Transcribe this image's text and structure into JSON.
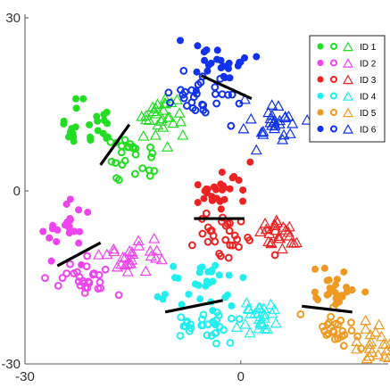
{
  "chart_data": {
    "type": "scatter",
    "title": "",
    "xlabel": "",
    "ylabel": "",
    "xlim": [
      -30,
      20.5
    ],
    "ylim": [
      -30,
      30
    ],
    "xticks": [
      {
        "value": -30,
        "label": "-30"
      },
      {
        "value": 0,
        "label": "0"
      }
    ],
    "yticks": [
      {
        "value": 30,
        "label": "30"
      },
      {
        "value": 0,
        "label": "0"
      },
      {
        "value": -30,
        "label": "-30"
      }
    ],
    "grid": false,
    "legend_position": "top-right",
    "marker_styles": [
      {
        "name": "filled-circle"
      },
      {
        "name": "open-circle"
      },
      {
        "name": "open-triangle"
      }
    ],
    "series": [
      {
        "name": "ID 1",
        "color": "#22dd22",
        "clusters": [
          {
            "marker": "filled-circle",
            "center": [
              -20.5,
              11
            ],
            "spread": [
              1.9,
              2.3
            ],
            "count": 26
          },
          {
            "marker": "open-circle",
            "center": [
              -15.5,
              5.8
            ],
            "spread": [
              1.8,
              2.1
            ],
            "count": 26
          },
          {
            "marker": "open-triangle",
            "center": [
              -11,
              12.5
            ],
            "spread": [
              1.8,
              2.3
            ],
            "count": 28
          }
        ],
        "separator": [
          [
            -19.5,
            4.5
          ],
          [
            -15.5,
            11.5
          ]
        ]
      },
      {
        "name": "ID 2",
        "color": "#ee44ee",
        "clusters": [
          {
            "marker": "filled-circle",
            "center": [
              -24.5,
              -6.3
            ],
            "spread": [
              1.6,
              2.2
            ],
            "count": 24
          },
          {
            "marker": "open-circle",
            "center": [
              -21.5,
              -15.5
            ],
            "spread": [
              2.2,
              1.7
            ],
            "count": 28
          },
          {
            "marker": "open-triangle",
            "center": [
              -14.5,
              -11.5
            ],
            "spread": [
              1.7,
              1.5
            ],
            "count": 26
          }
        ],
        "separator": [
          [
            -25.5,
            -13
          ],
          [
            -19.5,
            -9
          ]
        ]
      },
      {
        "name": "ID 3",
        "color": "#ee2222",
        "clusters": [
          {
            "marker": "filled-circle",
            "center": [
              -3,
              0.8
            ],
            "spread": [
              1.9,
              2.2
            ],
            "count": 28
          },
          {
            "marker": "open-circle",
            "center": [
              -1.5,
              -7.8
            ],
            "spread": [
              2.3,
              1.6
            ],
            "count": 30
          },
          {
            "marker": "open-triangle",
            "center": [
              6,
              -7.3
            ],
            "spread": [
              1.8,
              1.4
            ],
            "count": 24
          }
        ],
        "separator": [
          [
            -6.5,
            -4.8
          ],
          [
            0.5,
            -4.8
          ]
        ]
      },
      {
        "name": "ID 4",
        "color": "#22eeee",
        "clusters": [
          {
            "marker": "filled-circle",
            "center": [
              -6,
              -16.5
            ],
            "spread": [
              2.1,
              2.0
            ],
            "count": 30
          },
          {
            "marker": "open-circle",
            "center": [
              -5.5,
              -23
            ],
            "spread": [
              2.1,
              1.6
            ],
            "count": 30
          },
          {
            "marker": "open-triangle",
            "center": [
              2.5,
              -22.5
            ],
            "spread": [
              1.7,
              1.6
            ],
            "count": 26
          }
        ],
        "separator": [
          [
            -10.5,
            -21
          ],
          [
            -2.5,
            -19
          ]
        ]
      },
      {
        "name": "ID 5",
        "color": "#ee9922",
        "clusters": [
          {
            "marker": "filled-circle",
            "center": [
              13.5,
              -17
            ],
            "spread": [
              1.7,
              2.6
            ],
            "count": 24
          },
          {
            "marker": "open-circle",
            "center": [
              12.5,
              -24
            ],
            "spread": [
              1.8,
              1.7
            ],
            "count": 24
          },
          {
            "marker": "open-triangle",
            "center": [
              18.5,
              -27
            ],
            "spread": [
              1.6,
              1.6
            ],
            "count": 24
          }
        ],
        "separator": [
          [
            8.5,
            -20
          ],
          [
            15.5,
            -21
          ]
        ]
      },
      {
        "name": "ID 6",
        "color": "#1133ee",
        "clusters": [
          {
            "marker": "filled-circle",
            "center": [
              -2,
              22.5
            ],
            "spread": [
              2.2,
              1.8
            ],
            "count": 26
          },
          {
            "marker": "open-circle",
            "center": [
              -5.2,
              15.5
            ],
            "spread": [
              2.3,
              2.2
            ],
            "count": 30
          },
          {
            "marker": "open-triangle",
            "center": [
              4.5,
              11
            ],
            "spread": [
              1.9,
              1.7
            ],
            "count": 28
          }
        ],
        "separator": [
          [
            -5.5,
            20
          ],
          [
            1.5,
            16
          ]
        ]
      }
    ]
  }
}
